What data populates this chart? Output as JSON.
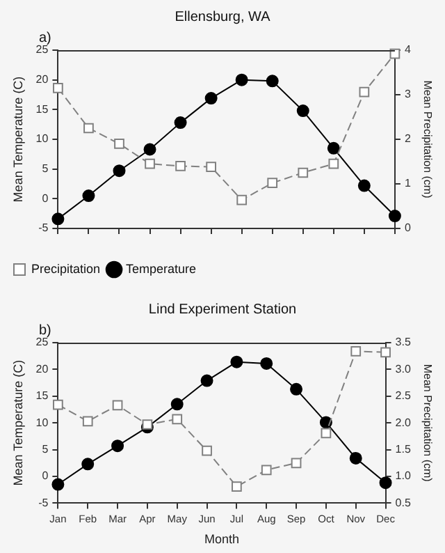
{
  "chart_data": [
    {
      "type": "line",
      "title": "Ellensburg, WA",
      "annotations": [
        "a)"
      ],
      "ylabel": "Mean Temperature (C)",
      "y2label": "Mean Precipitation (cm)",
      "categories": [
        null,
        null,
        null,
        null,
        null,
        null,
        null,
        null,
        null,
        null,
        null,
        null
      ],
      "series": [
        {
          "name": "Temperature",
          "color": "#000000",
          "marker": "circle",
          "line_style": "solid",
          "values": [
            -3.4,
            0.5,
            4.7,
            8.3,
            12.8,
            16.9,
            20.0,
            19.8,
            14.8,
            8.5,
            2.2,
            -2.9
          ]
        },
        {
          "name": "Precipitation",
          "color": "#808080",
          "marker": "square",
          "line_style": "dashed",
          "axis": "y2",
          "values": [
            3.15,
            2.25,
            1.9,
            1.45,
            1.4,
            1.38,
            0.64,
            1.02,
            1.25,
            1.45,
            3.06,
            3.92
          ]
        }
      ],
      "ylim": [
        -5,
        25
      ],
      "yticks": [
        -5,
        0,
        5,
        10,
        15,
        20,
        25
      ],
      "y2lim": [
        0,
        4
      ],
      "y2ticks": [
        0,
        1,
        2,
        3,
        4
      ],
      "grid": false,
      "legend": "bottom"
    },
    {
      "type": "line",
      "title": "Lind Experiment Station",
      "annotations": [
        "b)"
      ],
      "xlabel": "Month",
      "ylabel": "Mean Temperature (C)",
      "y2label": "Mean Precipitation (cm)",
      "categories": [
        "Jan",
        "Feb",
        "Mar",
        "Apr",
        "May",
        "Jun",
        "Jul",
        "Aug",
        "Sep",
        "Oct",
        "Nov",
        "Dec"
      ],
      "series": [
        {
          "color": "#000000",
          "marker": "circle",
          "line_style": "solid",
          "values": [
            -1.5,
            2.3,
            5.7,
            9.2,
            13.5,
            17.9,
            21.4,
            21.1,
            16.3,
            10.1,
            3.4,
            -1.2
          ]
        },
        {
          "color": "#808080",
          "marker": "square",
          "line_style": "dashed",
          "axis": "y2",
          "values": [
            2.34,
            2.03,
            2.33,
            1.97,
            2.07,
            1.48,
            0.81,
            1.12,
            1.25,
            1.81,
            3.34,
            3.32
          ]
        }
      ],
      "ylim": [
        -5,
        25
      ],
      "yticks": [
        -5,
        0,
        5,
        10,
        15,
        20,
        25
      ],
      "y2lim": [
        0.5,
        3.5
      ],
      "y2ticks": [
        {
          "value": 0.5,
          "label": "0.5"
        },
        {
          "value": 1,
          "label": "1.0"
        },
        {
          "value": 1.5,
          "label": "1.5"
        },
        {
          "value": 2,
          "label": "2.0"
        },
        {
          "value": 2.5,
          "label": "2.5"
        },
        {
          "value": 3,
          "label": "3.0"
        },
        {
          "value": 3.5,
          "label": "3.5"
        }
      ],
      "grid": false,
      "legend": false
    }
  ]
}
